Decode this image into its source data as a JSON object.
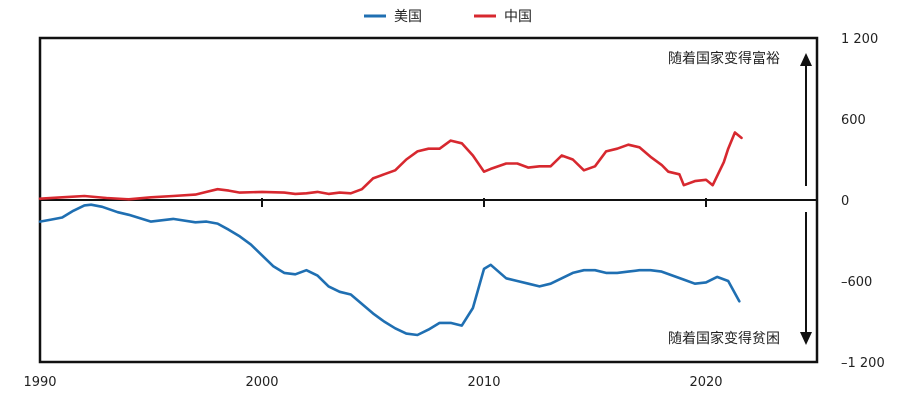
{
  "chart_data": {
    "type": "line",
    "legend": {
      "placement": "top-center",
      "entries": [
        {
          "label": "美国",
          "color": "#1f6fb2"
        },
        {
          "label": "中国",
          "color": "#d7282f"
        }
      ]
    },
    "annotations": {
      "richer": "随着国家变得富裕",
      "poorer": "随着国家变得贫困"
    },
    "x_ticks": [
      "1990",
      "2000",
      "2010",
      "2020"
    ],
    "x_tick_values": [
      1990,
      2000,
      2010,
      2020
    ],
    "xlim": [
      1990,
      2025
    ],
    "y_ticks": [
      "1 200",
      "600",
      "0",
      "–600",
      "–1 200"
    ],
    "y_tick_values": [
      1200,
      600,
      0,
      -600,
      -1200
    ],
    "ylim": [
      -1200,
      1200
    ],
    "grid": false,
    "series": [
      {
        "name": "美国",
        "color": "#1f6fb2",
        "x": [
          1990.0,
          1990.5,
          1991.0,
          1991.5,
          1992.0,
          1992.3,
          1992.8,
          1993.5,
          1994.0,
          1995.0,
          1996.0,
          1997.0,
          1997.5,
          1998.0,
          1998.5,
          1999.0,
          1999.5,
          2000.0,
          2000.5,
          2001.0,
          2001.5,
          2002.0,
          2002.5,
          2003.0,
          2003.5,
          2004.0,
          2005.0,
          2005.5,
          2006.0,
          2006.5,
          2007.0,
          2007.5,
          2008.0,
          2008.5,
          2009.0,
          2009.5,
          2010.0,
          2010.3,
          2011.0,
          2011.5,
          2012.0,
          2012.5,
          2013.0,
          2013.5,
          2014.0,
          2014.5,
          2015.0,
          2015.5,
          2016.0,
          2016.5,
          2017.0,
          2017.5,
          2018.0,
          2018.5,
          2019.0,
          2019.5,
          2020.0,
          2020.5,
          2021.0,
          2021.5
        ],
        "y": [
          -160,
          -145,
          -130,
          -80,
          -40,
          -35,
          -50,
          -90,
          -110,
          -160,
          -140,
          -165,
          -160,
          -175,
          -220,
          -270,
          -330,
          -410,
          -490,
          -540,
          -550,
          -520,
          -560,
          -640,
          -680,
          -700,
          -840,
          -900,
          -950,
          -990,
          -1000,
          -960,
          -910,
          -910,
          -930,
          -800,
          -510,
          -480,
          -580,
          -600,
          -620,
          -640,
          -620,
          -580,
          -540,
          -520,
          -520,
          -540,
          -540,
          -530,
          -520,
          -520,
          -530,
          -560,
          -590,
          -620,
          -610,
          -570,
          -600,
          -750
        ]
      },
      {
        "name": "中国",
        "color": "#d7282f",
        "x": [
          1990.0,
          1991.0,
          1992.0,
          1993.0,
          1994.0,
          1995.0,
          1996.0,
          1997.0,
          1997.5,
          1998.0,
          1998.5,
          1999.0,
          2000.0,
          2001.0,
          2001.5,
          2002.0,
          2002.5,
          2003.0,
          2003.5,
          2004.0,
          2004.5,
          2005.0,
          2005.5,
          2006.0,
          2006.5,
          2007.0,
          2007.5,
          2008.0,
          2008.5,
          2009.0,
          2009.5,
          2010.0,
          2010.3,
          2011.0,
          2011.5,
          2012.0,
          2012.5,
          2013.0,
          2013.5,
          2014.0,
          2014.5,
          2015.0,
          2015.5,
          2016.0,
          2016.5,
          2017.0,
          2017.5,
          2018.0,
          2018.3,
          2018.8,
          2019.0,
          2019.5,
          2020.0,
          2020.3,
          2020.8,
          2021.0,
          2021.3,
          2021.6
        ],
        "y": [
          10,
          20,
          30,
          15,
          5,
          20,
          30,
          40,
          60,
          80,
          70,
          55,
          60,
          55,
          45,
          50,
          60,
          45,
          55,
          50,
          80,
          160,
          190,
          220,
          300,
          360,
          380,
          380,
          440,
          420,
          330,
          210,
          230,
          270,
          270,
          240,
          250,
          250,
          330,
          300,
          220,
          250,
          360,
          380,
          410,
          390,
          320,
          260,
          210,
          190,
          110,
          140,
          150,
          110,
          280,
          380,
          500,
          460
        ]
      }
    ]
  }
}
